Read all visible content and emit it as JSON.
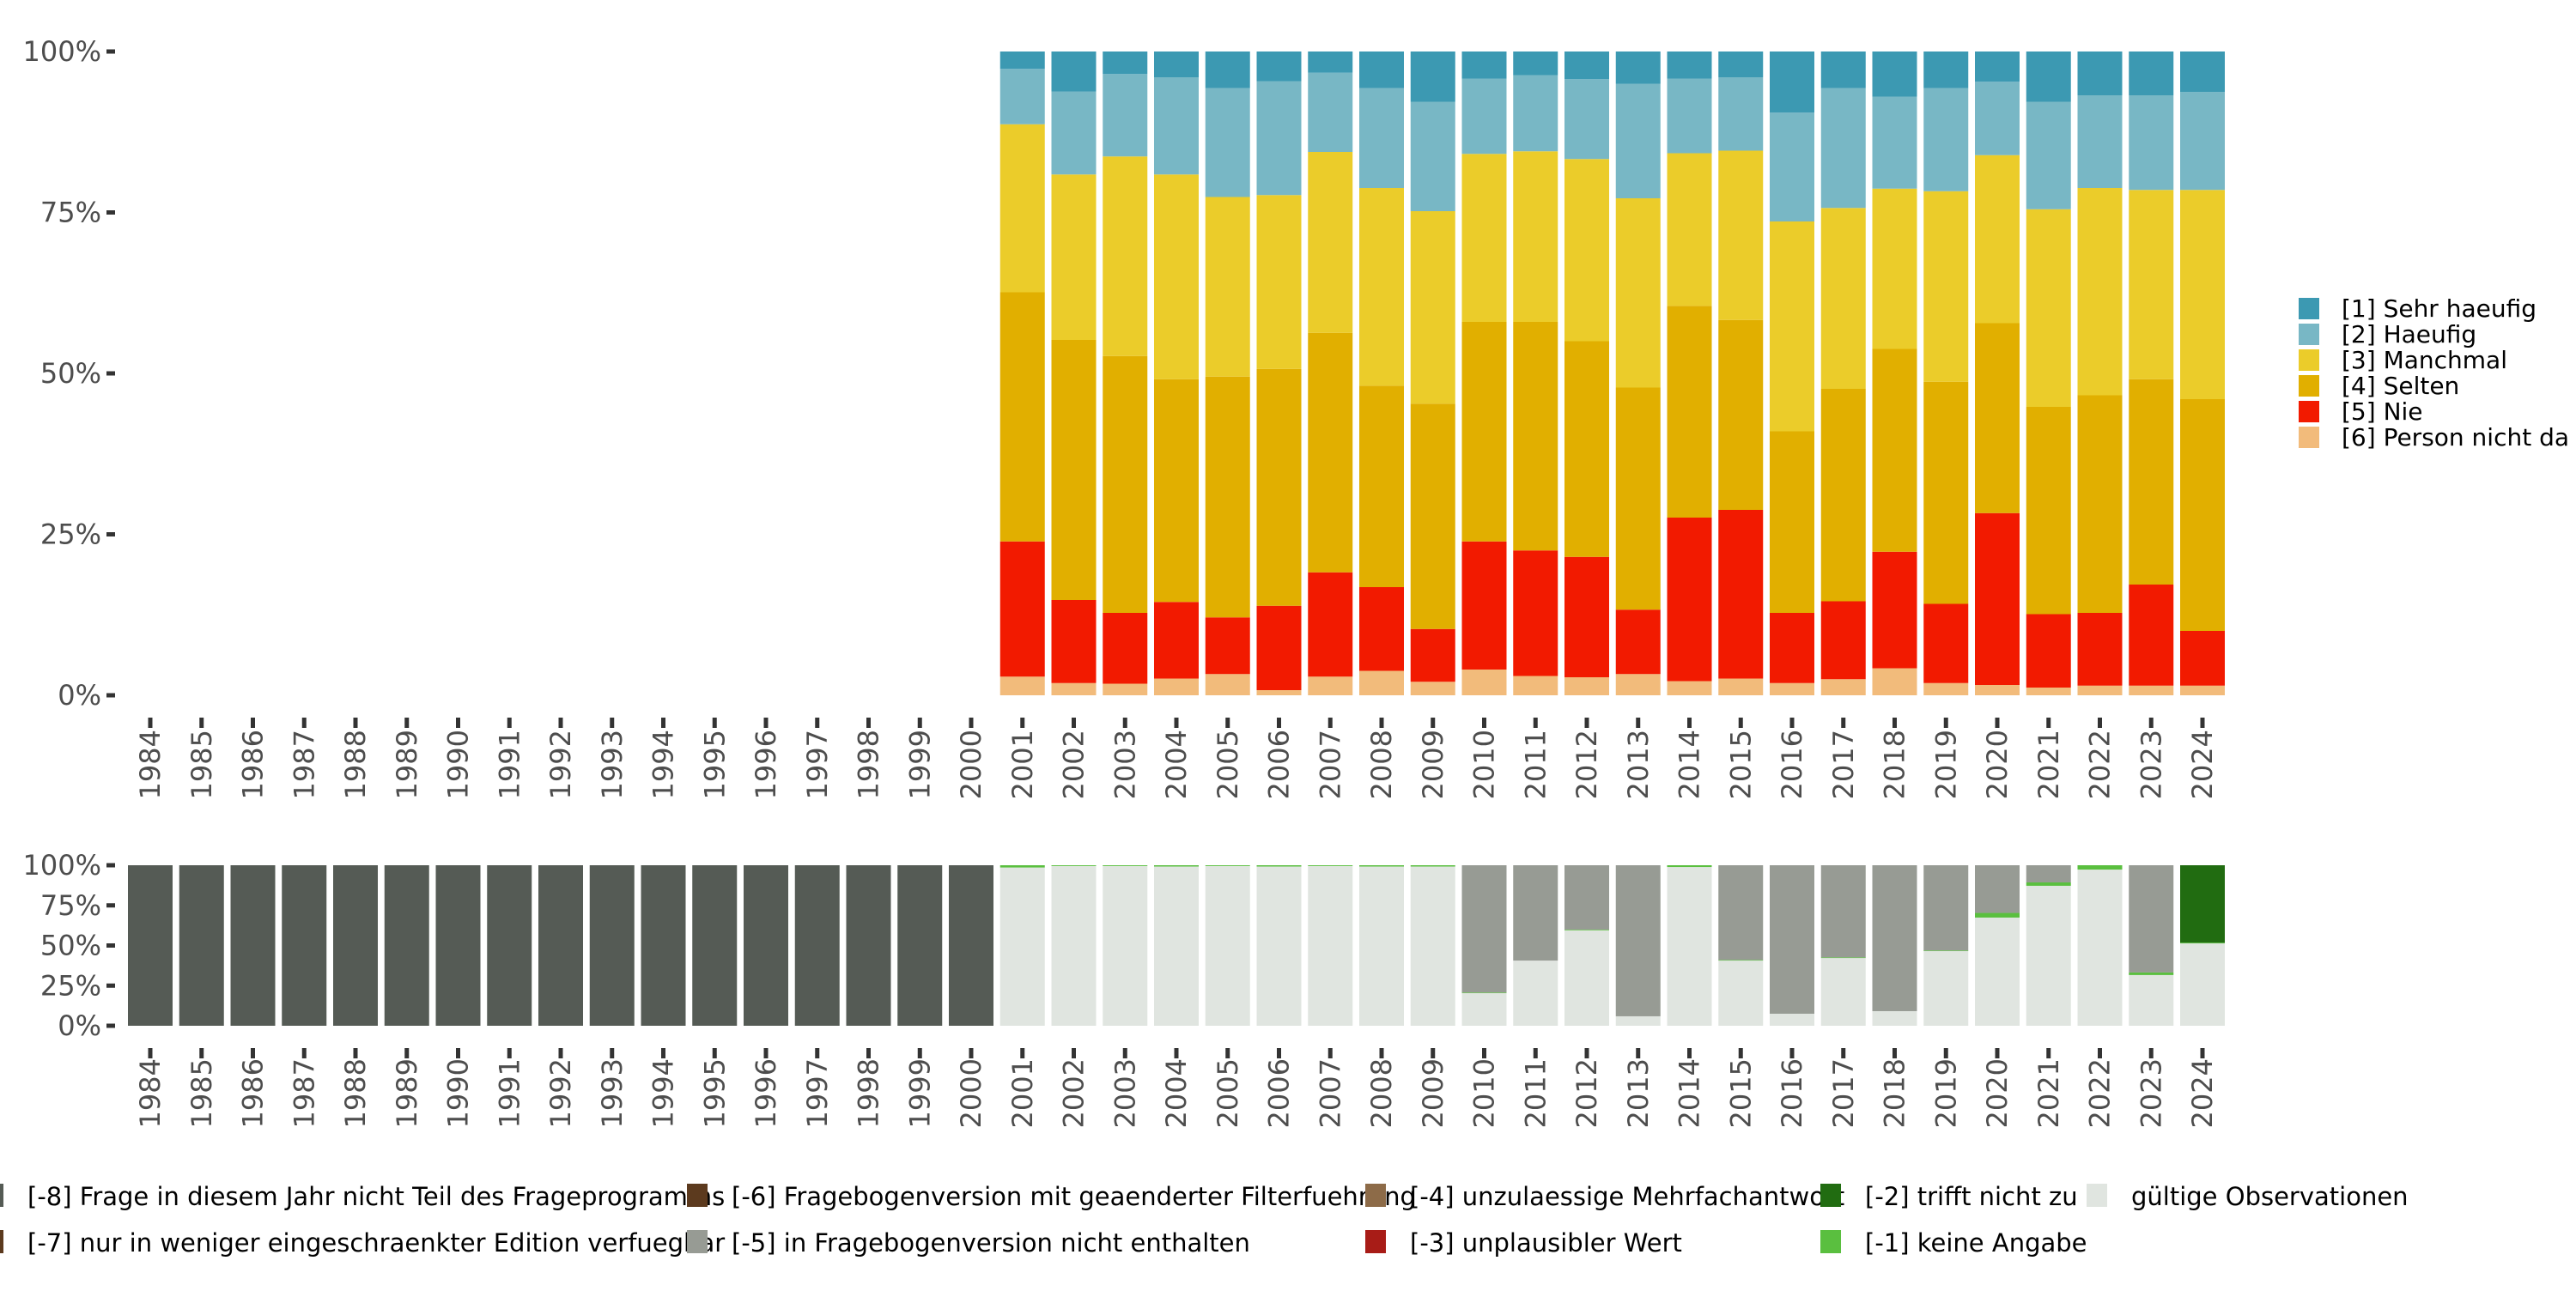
{
  "chart_data": [
    {
      "type": "bar",
      "stacked": true,
      "normalized": true,
      "title": "",
      "xlabel": "",
      "ylabel": "",
      "ylim": [
        0,
        1
      ],
      "y_ticks": [
        "0%",
        "25%",
        "50%",
        "75%",
        "100%"
      ],
      "categories": [
        "1984",
        "1985",
        "1986",
        "1987",
        "1988",
        "1989",
        "1990",
        "1991",
        "1992",
        "1993",
        "1994",
        "1995",
        "1996",
        "1997",
        "1998",
        "1999",
        "2000",
        "2001",
        "2002",
        "2003",
        "2004",
        "2005",
        "2006",
        "2007",
        "2008",
        "2009",
        "2010",
        "2011",
        "2012",
        "2013",
        "2014",
        "2015",
        "2016",
        "2017",
        "2018",
        "2019",
        "2020",
        "2021",
        "2022",
        "2023",
        "2024"
      ],
      "legend_position": "right",
      "stack_order_bottom_to_top": [
        "[6] Person nicht da",
        "[5] Nie",
        "[4] Selten",
        "[3] Manchmal",
        "[2] Haeufig",
        "[1] Sehr haeufig"
      ],
      "series": [
        {
          "name": "[1] Sehr haeufig",
          "color": "#3c99b2",
          "values": [
            null,
            null,
            null,
            null,
            null,
            null,
            null,
            null,
            null,
            null,
            null,
            null,
            null,
            null,
            null,
            null,
            null,
            2.7,
            6.2,
            3.5,
            4.0,
            5.7,
            4.6,
            3.3,
            5.7,
            7.8,
            4.2,
            3.7,
            4.3,
            5.0,
            4.2,
            4.0,
            9.5,
            5.7,
            7.0,
            5.7,
            4.7,
            7.8,
            6.8,
            6.8,
            6.3
          ]
        },
        {
          "name": "[2] Haeufig",
          "color": "#78b7c5",
          "values": [
            null,
            null,
            null,
            null,
            null,
            null,
            null,
            null,
            null,
            null,
            null,
            null,
            null,
            null,
            null,
            null,
            null,
            8.6,
            12.9,
            12.8,
            15.1,
            16.9,
            17.7,
            12.3,
            15.5,
            17.0,
            11.7,
            11.8,
            12.4,
            17.8,
            11.6,
            11.4,
            16.9,
            18.6,
            14.3,
            16.0,
            11.4,
            16.7,
            14.4,
            14.7,
            15.2
          ]
        },
        {
          "name": "[3] Manchmal",
          "color": "#ebcc2a",
          "values": [
            null,
            null,
            null,
            null,
            null,
            null,
            null,
            null,
            null,
            null,
            null,
            null,
            null,
            null,
            null,
            null,
            null,
            26.1,
            25.7,
            31.0,
            31.8,
            27.9,
            27.0,
            28.1,
            30.7,
            29.9,
            26.1,
            26.5,
            28.3,
            29.4,
            23.7,
            26.3,
            32.6,
            28.1,
            24.9,
            29.6,
            26.1,
            30.7,
            32.2,
            29.4,
            32.5
          ]
        },
        {
          "name": "[4] Selten",
          "color": "#e1af00",
          "values": [
            null,
            null,
            null,
            null,
            null,
            null,
            null,
            null,
            null,
            null,
            null,
            null,
            null,
            null,
            null,
            null,
            null,
            38.7,
            40.4,
            39.9,
            34.6,
            37.4,
            36.8,
            37.2,
            31.3,
            35.0,
            34.1,
            35.5,
            33.5,
            34.5,
            32.9,
            29.5,
            28.2,
            33.0,
            31.5,
            34.5,
            29.5,
            32.2,
            33.8,
            31.9,
            36.0
          ]
        },
        {
          "name": "[5] Nie",
          "color": "#f21a00",
          "values": [
            null,
            null,
            null,
            null,
            null,
            null,
            null,
            null,
            null,
            null,
            null,
            null,
            null,
            null,
            null,
            null,
            null,
            21.0,
            12.9,
            11.0,
            11.9,
            8.8,
            13.1,
            16.2,
            13.0,
            8.2,
            19.9,
            19.5,
            18.7,
            10.0,
            25.4,
            26.2,
            10.9,
            12.1,
            18.1,
            12.3,
            26.7,
            11.4,
            11.3,
            15.7,
            8.5
          ]
        },
        {
          "name": "[6] Person nicht da",
          "color": "#f2bb7b",
          "values": [
            null,
            null,
            null,
            null,
            null,
            null,
            null,
            null,
            null,
            null,
            null,
            null,
            null,
            null,
            null,
            null,
            null,
            2.9,
            1.9,
            1.8,
            2.6,
            3.3,
            0.8,
            2.9,
            3.8,
            2.1,
            4.0,
            3.0,
            2.8,
            3.3,
            2.2,
            2.6,
            1.9,
            2.5,
            4.2,
            1.9,
            1.6,
            1.2,
            1.5,
            1.5,
            1.5
          ]
        }
      ]
    },
    {
      "type": "bar",
      "stacked": true,
      "normalized": true,
      "title": "",
      "xlabel": "",
      "ylabel": "",
      "ylim": [
        0,
        1
      ],
      "y_ticks": [
        "0%",
        "25%",
        "50%",
        "75%",
        "100%"
      ],
      "categories": [
        "1984",
        "1985",
        "1986",
        "1987",
        "1988",
        "1989",
        "1990",
        "1991",
        "1992",
        "1993",
        "1994",
        "1995",
        "1996",
        "1997",
        "1998",
        "1999",
        "2000",
        "2001",
        "2002",
        "2003",
        "2004",
        "2005",
        "2006",
        "2007",
        "2008",
        "2009",
        "2010",
        "2011",
        "2012",
        "2013",
        "2014",
        "2015",
        "2016",
        "2017",
        "2018",
        "2019",
        "2020",
        "2021",
        "2022",
        "2023",
        "2024"
      ],
      "legend_position": "bottom",
      "stack_order_bottom_to_top": [
        "gültige Observationen",
        "[-1] keine Angabe",
        "[-2] trifft nicht zu",
        "[-3] unplausibler Wert",
        "[-4] unzulaessige Mehrfachantwort",
        "[-5] in Fragebogenversion nicht enthalten",
        "[-6] Fragebogenversion mit geaenderter Filterfuehrung",
        "[-7] nur in weniger eingeschraenkter Edition verfuegbar",
        "[-8] Frage in diesem Jahr nicht Teil des Frageprogramms"
      ],
      "series": [
        {
          "name": "[-8] Frage in diesem Jahr nicht Teil des Frageprogramms",
          "color": "#555b55",
          "values": [
            100,
            100,
            100,
            100,
            100,
            100,
            100,
            100,
            100,
            100,
            100,
            100,
            100,
            100,
            100,
            100,
            100,
            0,
            0,
            0,
            0,
            0,
            0,
            0,
            0,
            0,
            0,
            0,
            0,
            0,
            0,
            0,
            0,
            0,
            0,
            0,
            0,
            0,
            0,
            0,
            0
          ]
        },
        {
          "name": "[-7] nur in weniger eingeschraenkter Edition verfuegbar",
          "color": "#5c3a1e",
          "values": [
            0,
            0,
            0,
            0,
            0,
            0,
            0,
            0,
            0,
            0,
            0,
            0,
            0,
            0,
            0,
            0,
            0,
            0,
            0,
            0,
            0,
            0,
            0,
            0,
            0,
            0,
            0,
            0,
            0,
            0,
            0,
            0,
            0,
            0,
            0,
            0,
            0,
            0,
            0,
            0,
            0
          ]
        },
        {
          "name": "[-6] Fragebogenversion mit geaenderter Filterfuehrung",
          "color": "#5c3a1e",
          "values": [
            0,
            0,
            0,
            0,
            0,
            0,
            0,
            0,
            0,
            0,
            0,
            0,
            0,
            0,
            0,
            0,
            0,
            0,
            0,
            0,
            0,
            0,
            0,
            0,
            0,
            0,
            0,
            0,
            0,
            0,
            0,
            0,
            0,
            0,
            0,
            0,
            0,
            0,
            0,
            0,
            0
          ]
        },
        {
          "name": "[-5] in Fragebogenversion nicht enthalten",
          "color": "#979b94",
          "values": [
            0,
            0,
            0,
            0,
            0,
            0,
            0,
            0,
            0,
            0,
            0,
            0,
            0,
            0,
            0,
            0,
            0,
            0,
            0,
            0,
            0,
            0,
            0,
            0,
            0,
            0,
            79.3,
            59.4,
            40.1,
            94.1,
            0,
            59.0,
            92.5,
            57.4,
            90.9,
            53.1,
            29.7,
            10.7,
            0,
            66.8,
            0
          ]
        },
        {
          "name": "[-4] unzulaessige Mehrfachantwort",
          "color": "#8d6b48",
          "values": [
            0,
            0,
            0,
            0,
            0,
            0,
            0,
            0,
            0,
            0,
            0,
            0,
            0,
            0,
            0,
            0,
            0,
            0,
            0,
            0,
            0,
            0,
            0,
            0,
            0,
            0,
            0,
            0,
            0,
            0,
            0,
            0,
            0,
            0,
            0,
            0,
            0,
            0,
            0,
            0,
            0
          ]
        },
        {
          "name": "[-3] unplausibler Wert",
          "color": "#a81c17",
          "values": [
            0,
            0,
            0,
            0,
            0,
            0,
            0,
            0,
            0,
            0,
            0,
            0,
            0,
            0,
            0,
            0,
            0,
            0,
            0,
            0,
            0,
            0,
            0,
            0,
            0,
            0,
            0,
            0,
            0,
            0,
            0,
            0,
            0,
            0,
            0,
            0,
            0,
            0,
            0,
            0,
            0
          ]
        },
        {
          "name": "[-2] trifft nicht zu",
          "color": "#216c11",
          "values": [
            0,
            0,
            0,
            0,
            0,
            0,
            0,
            0,
            0,
            0,
            0,
            0,
            0,
            0,
            0,
            0,
            0,
            0,
            0,
            0,
            0,
            0,
            0,
            0,
            0,
            0,
            0,
            0,
            0,
            0,
            0,
            0,
            0,
            0,
            0,
            0,
            0,
            0,
            0,
            0,
            48.2
          ]
        },
        {
          "name": "[-1] keine Angabe",
          "color": "#5abf3f",
          "values": [
            0,
            0,
            0,
            0,
            0,
            0,
            0,
            0,
            0,
            0,
            0,
            0,
            0,
            0,
            0,
            0,
            0,
            1.4,
            0.5,
            0.5,
            0.8,
            0.5,
            0.8,
            0.5,
            0.8,
            0.8,
            0.4,
            0.0,
            0.4,
            0.0,
            1.1,
            0.4,
            0.0,
            0.4,
            0.0,
            0.4,
            2.9,
            2.1,
            2.7,
            1.6,
            0.5
          ]
        },
        {
          "name": "gültige Observationen",
          "color": "#e0e5e0",
          "values": [
            0,
            0,
            0,
            0,
            0,
            0,
            0,
            0,
            0,
            0,
            0,
            0,
            0,
            0,
            0,
            0,
            0,
            98.6,
            99.5,
            99.5,
            99.2,
            99.5,
            99.2,
            99.5,
            99.2,
            99.2,
            20.3,
            40.6,
            59.5,
            5.9,
            98.9,
            40.6,
            7.5,
            42.2,
            9.1,
            46.5,
            67.4,
            87.2,
            97.3,
            31.6,
            51.3
          ]
        }
      ]
    }
  ],
  "top_legend": {
    "items": [
      {
        "label": "[1] Sehr haeufig",
        "color": "#3c99b2"
      },
      {
        "label": "[2] Haeufig",
        "color": "#78b7c5"
      },
      {
        "label": "[3] Manchmal",
        "color": "#ebcc2a"
      },
      {
        "label": "[4] Selten",
        "color": "#e1af00"
      },
      {
        "label": "[5] Nie",
        "color": "#f21a00"
      },
      {
        "label": "[6] Person nicht da",
        "color": "#f2bb7b"
      }
    ]
  },
  "bottom_legend": {
    "items": [
      {
        "label": "[-8] Frage in diesem Jahr nicht Teil des Frageprogramms",
        "color": "#555b55"
      },
      {
        "label": "[-7] nur in weniger eingeschraenkter Edition verfuegbar",
        "color": "#5c3a1e"
      },
      {
        "label": "[-6] Fragebogenversion mit geaenderter Filterfuehrung",
        "color": "#5c3a1e"
      },
      {
        "label": "[-5] in Fragebogenversion nicht enthalten",
        "color": "#979b94"
      },
      {
        "label": "[-4] unzulaessige Mehrfachantwort",
        "color": "#8d6b48"
      },
      {
        "label": "[-3] unplausibler Wert",
        "color": "#a81c17"
      },
      {
        "label": "[-2] trifft nicht zu",
        "color": "#216c11"
      },
      {
        "label": "[-1] keine Angabe",
        "color": "#5abf3f"
      },
      {
        "label": "gültige Observationen",
        "color": "#e0e5e0"
      }
    ]
  }
}
